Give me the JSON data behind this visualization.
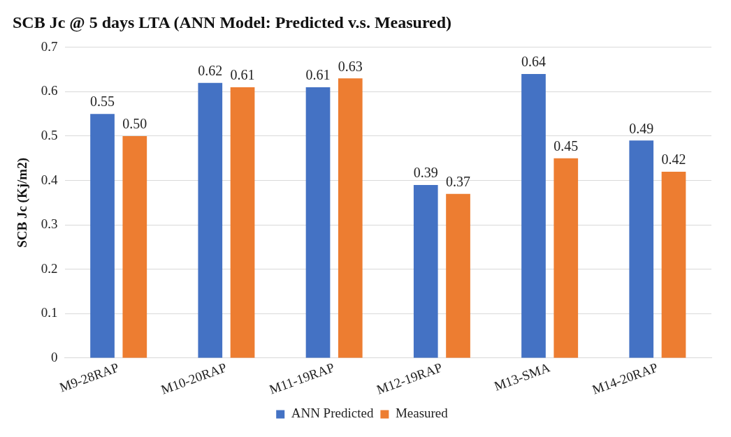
{
  "chart_data": {
    "type": "bar",
    "title": "SCB Jc @ 5 days LTA (ANN Model: Predicted v.s. Measured)",
    "ylabel": "SCB Jc (Kj/m2)",
    "categories": [
      "M9-28RAP",
      "M10-20RAP",
      "M11-19RAP",
      "M12-19RAP",
      "M13-SMA",
      "M14-20RAP"
    ],
    "series": [
      {
        "name": "ANN Predicted",
        "color": "#4472c4",
        "values": [
          0.55,
          0.62,
          0.61,
          0.39,
          0.64,
          0.49
        ],
        "value_labels": [
          "0.55",
          "0.62",
          "0.61",
          "0.39",
          "0.64",
          "0.49"
        ]
      },
      {
        "name": "Measured",
        "color": "#ed7d31",
        "values": [
          0.5,
          0.61,
          0.63,
          0.37,
          0.45,
          0.42
        ],
        "value_labels": [
          "0.50",
          "0.61",
          "0.63",
          "0.37",
          "0.45",
          "0.42"
        ]
      }
    ],
    "ylim": [
      0,
      0.7
    ],
    "yticks": [
      0,
      0.1,
      0.2,
      0.3,
      0.4,
      0.5,
      0.6,
      0.7
    ],
    "grid": "y",
    "legend": "bottom"
  }
}
